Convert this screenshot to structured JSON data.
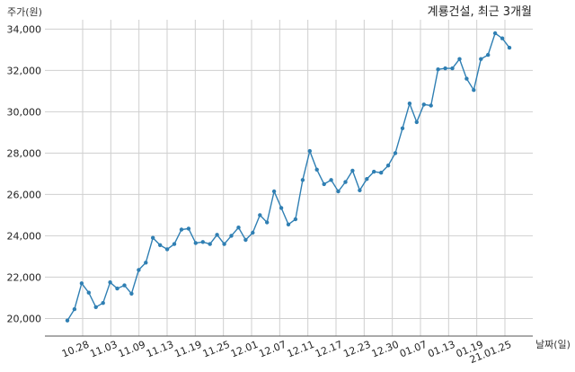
{
  "chart_data": {
    "type": "line",
    "title": "계룡건설, 최근 3개월",
    "xlabel": "날짜(일)",
    "ylabel": "주가(원)",
    "x_tick_labels": [
      "10.28",
      "11.03",
      "11.09",
      "11.13",
      "11.19",
      "11.25",
      "12.01",
      "12.07",
      "12.11",
      "12.17",
      "12.23",
      "12.30",
      "01.07",
      "01.13",
      "01.19",
      "21.01.25"
    ],
    "y_tick_labels": [
      "20,000",
      "22,000",
      "24,000",
      "26,000",
      "28,000",
      "30,000",
      "32,000",
      "34,000"
    ],
    "ylim": [
      19150,
      34450
    ],
    "grid": true,
    "color": "#2f7fb3",
    "series": [
      {
        "name": "",
        "values": [
          19900,
          20450,
          21700,
          21250,
          20550,
          20750,
          21750,
          21450,
          21600,
          21200,
          22350,
          22700,
          23900,
          23550,
          23350,
          23600,
          24300,
          24350,
          23650,
          23700,
          23600,
          24050,
          23600,
          24000,
          24400,
          23800,
          24150,
          25000,
          24650,
          26150,
          25350,
          24550,
          24800,
          26700,
          28100,
          27200,
          26500,
          26700,
          26150,
          26600,
          27150,
          26200,
          26750,
          27100,
          27050,
          27400,
          28000,
          29200,
          30400,
          29500,
          30350,
          30300,
          32050,
          32100,
          32100,
          32550,
          31600,
          31050,
          32550,
          32750,
          33800,
          33550,
          33100
        ]
      }
    ]
  }
}
